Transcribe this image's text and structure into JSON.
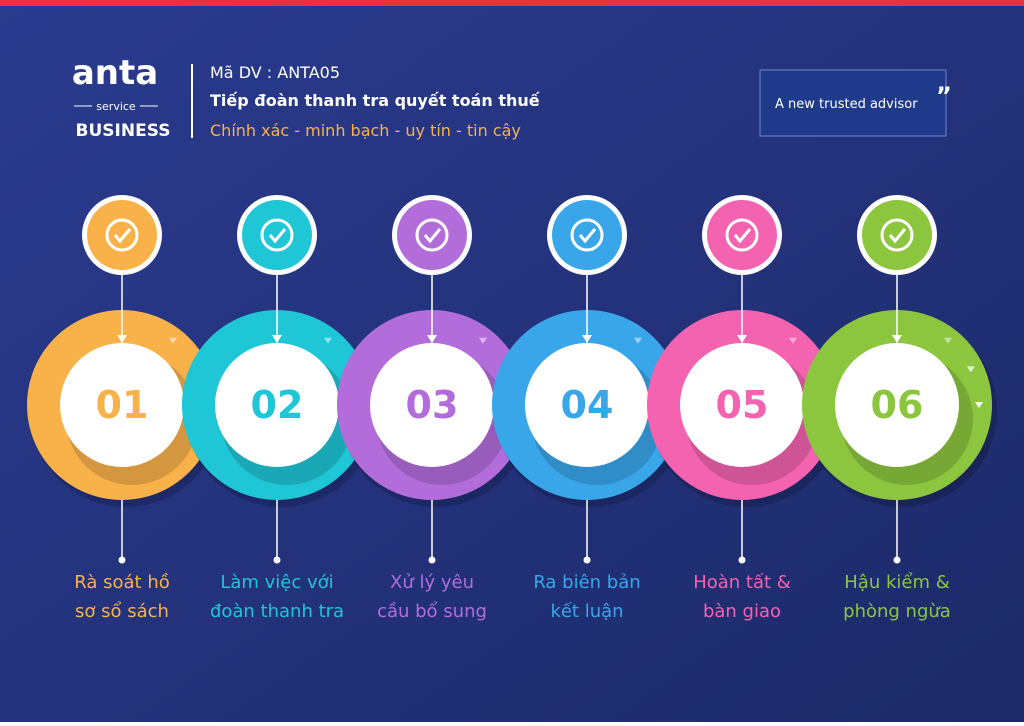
{
  "header": {
    "logo": "anta",
    "logo_sub": "service",
    "logo_brand": "BUSINESS",
    "code": "Mã DV : ANTA05",
    "title": "Tiếp đoàn thanh tra quyết toán thuế",
    "slogan": "Chính xác - minh bạch - uy tín - tin cậy",
    "tagline": "A new trusted advisor",
    "quote": "”"
  },
  "steps": [
    {
      "number": "01",
      "label": [
        "Rà soát hồ",
        "sơ sổ sách"
      ],
      "color": "#f9b24a"
    },
    {
      "number": "02",
      "label": [
        "Làm việc với",
        "đoàn thanh tra"
      ],
      "color": "#1fc6d6"
    },
    {
      "number": "03",
      "label": [
        "Xử lý yêu",
        "cầu bổ sung"
      ],
      "color": "#b36ddb"
    },
    {
      "number": "04",
      "label": [
        "Ra biên bản",
        "kết luận"
      ],
      "color": "#3aa6ea"
    },
    {
      "number": "05",
      "label": [
        "Hoàn tất &",
        "bàn giao"
      ],
      "color": "#f463b0"
    },
    {
      "number": "06",
      "label": [
        "Hậu kiểm &",
        "phòng ngừa"
      ],
      "color": "#8cc63f"
    }
  ]
}
